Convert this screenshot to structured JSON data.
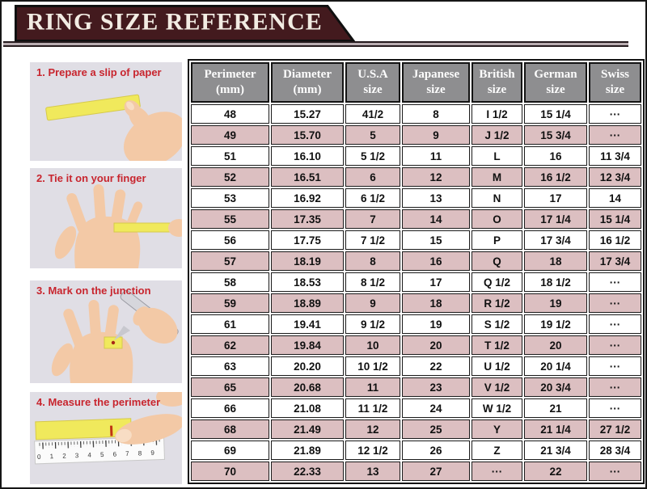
{
  "header": {
    "title": "RING SIZE REFERENCE",
    "banner_color": "#431a1e",
    "underline_color": "#b9adb1",
    "title_color": "#f2ece3"
  },
  "steps": [
    {
      "label": "1. Prepare a slip of paper"
    },
    {
      "label": "2. Tie it on your finger"
    },
    {
      "label": "3. Mark on the junction"
    },
    {
      "label": "4. Measure the perimeter"
    }
  ],
  "ruler_numbers": [
    "0",
    "1",
    "2",
    "3",
    "4",
    "5",
    "6",
    "7",
    "8",
    "9"
  ],
  "colors": {
    "step_heading": "#c8252e",
    "photo_bg": "#e0dee5",
    "paper_yellow": "#f0e95c",
    "skin": "#f3c9a6",
    "table_header_bg": "#8e8e90",
    "stripe_pink": "#dcbfc1"
  },
  "chart_data": {
    "type": "table",
    "title": "RING SIZE REFERENCE",
    "columns": [
      "Perimeter\n(mm)",
      "Diameter\n(mm)",
      "U.S.A\nsize",
      "Japanese\nsize",
      "British\nsize",
      "German\nsize",
      "Swiss\nsize"
    ],
    "rows": [
      [
        "48",
        "15.27",
        "41/2",
        "8",
        "I 1/2",
        "15 1/4",
        "···"
      ],
      [
        "49",
        "15.70",
        "5",
        "9",
        "J 1/2",
        "15 3/4",
        "···"
      ],
      [
        "51",
        "16.10",
        "5 1/2",
        "11",
        "L",
        "16",
        "11 3/4"
      ],
      [
        "52",
        "16.51",
        "6",
        "12",
        "M",
        "16 1/2",
        "12 3/4"
      ],
      [
        "53",
        "16.92",
        "6 1/2",
        "13",
        "N",
        "17",
        "14"
      ],
      [
        "55",
        "17.35",
        "7",
        "14",
        "O",
        "17 1/4",
        "15 1/4"
      ],
      [
        "56",
        "17.75",
        "7 1/2",
        "15",
        "P",
        "17 3/4",
        "16 1/2"
      ],
      [
        "57",
        "18.19",
        "8",
        "16",
        "Q",
        "18",
        "17 3/4"
      ],
      [
        "58",
        "18.53",
        "8 1/2",
        "17",
        "Q 1/2",
        "18 1/2",
        "···"
      ],
      [
        "59",
        "18.89",
        "9",
        "18",
        "R 1/2",
        "19",
        "···"
      ],
      [
        "61",
        "19.41",
        "9 1/2",
        "19",
        "S 1/2",
        "19 1/2",
        "···"
      ],
      [
        "62",
        "19.84",
        "10",
        "20",
        "T 1/2",
        "20",
        "···"
      ],
      [
        "63",
        "20.20",
        "10 1/2",
        "22",
        "U 1/2",
        "20 1/4",
        "···"
      ],
      [
        "65",
        "20.68",
        "11",
        "23",
        "V 1/2",
        "20 3/4",
        "···"
      ],
      [
        "66",
        "21.08",
        "11 1/2",
        "24",
        "W 1/2",
        "21",
        "···"
      ],
      [
        "68",
        "21.49",
        "12",
        "25",
        "Y",
        "21 1/4",
        "27 1/2"
      ],
      [
        "69",
        "21.89",
        "12 1/2",
        "26",
        "Z",
        "21 3/4",
        "28 3/4"
      ],
      [
        "70",
        "22.33",
        "13",
        "27",
        "···",
        "22",
        "···"
      ]
    ]
  }
}
